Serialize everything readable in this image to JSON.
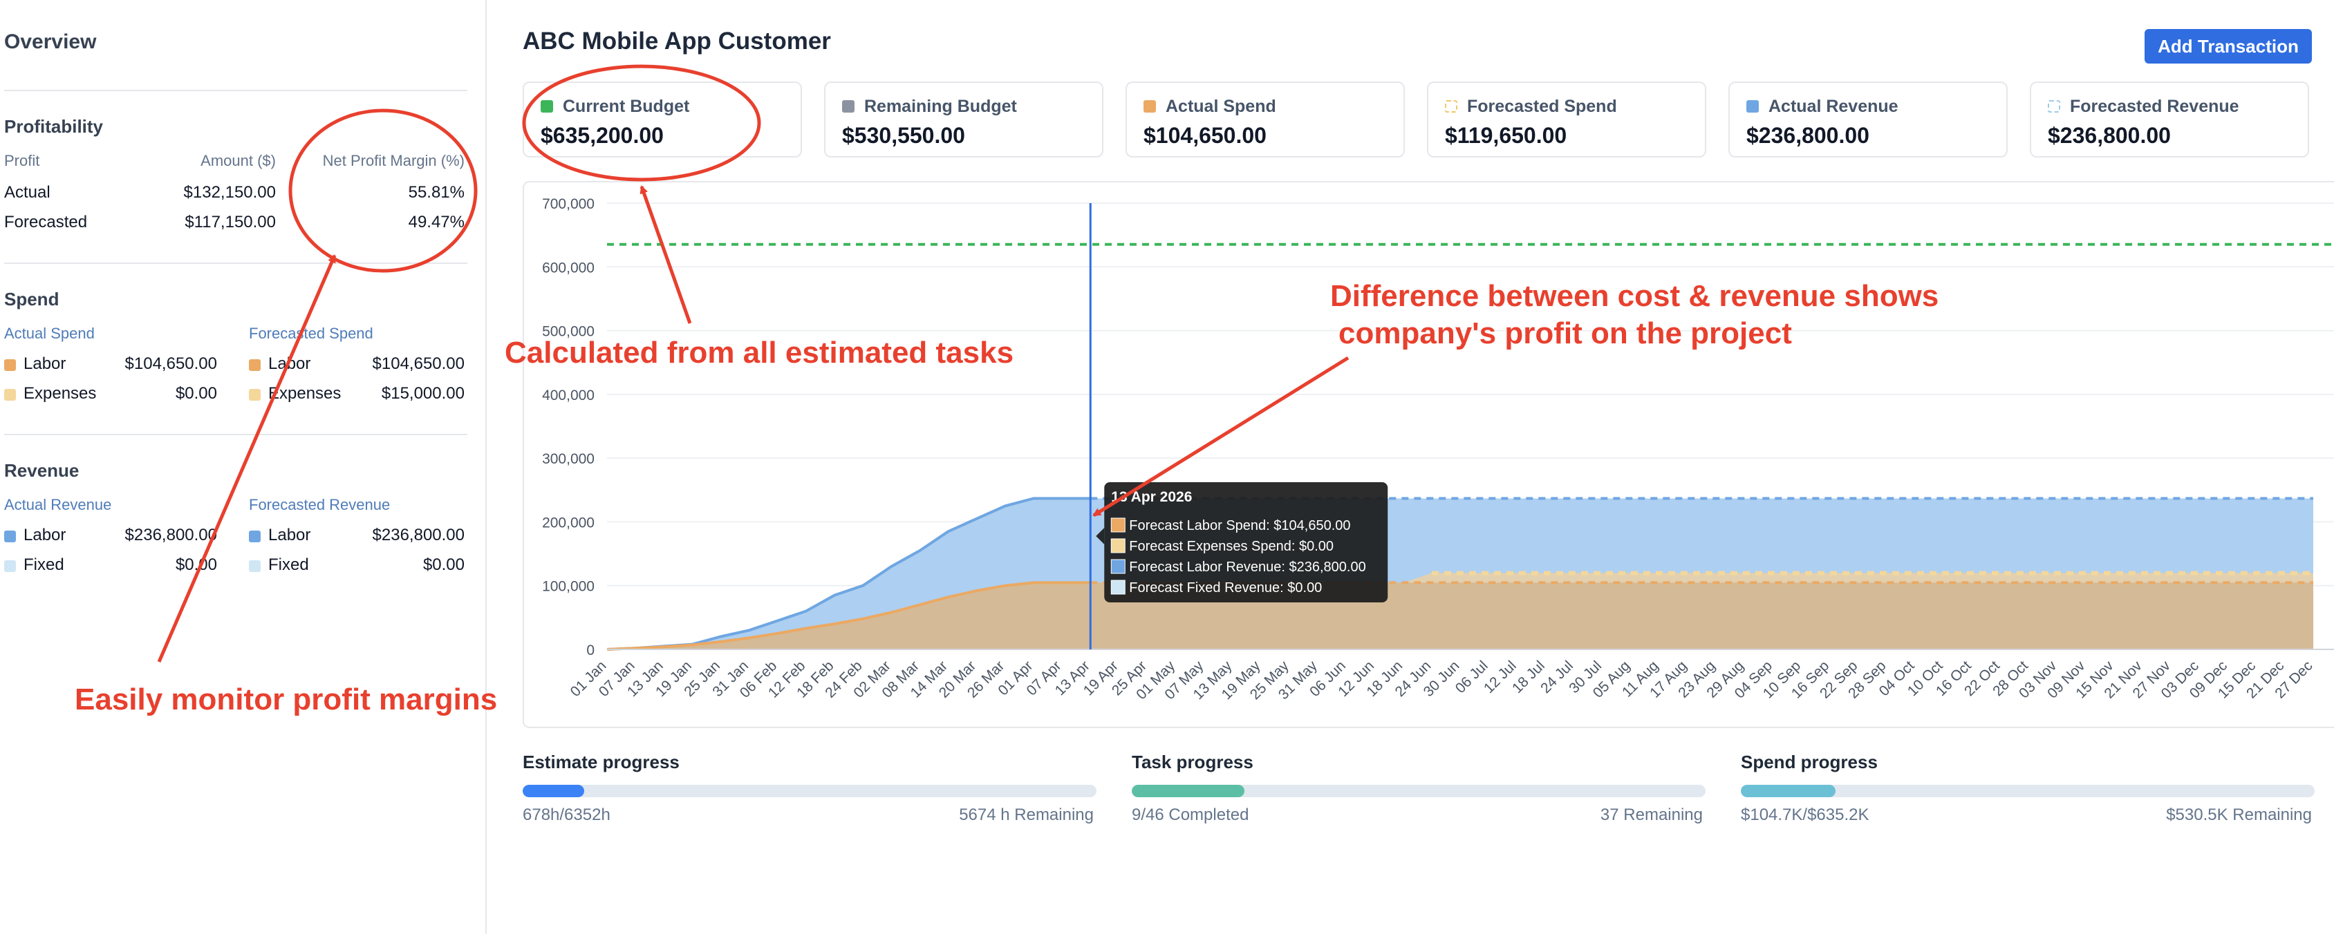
{
  "sidebar": {
    "title": "Overview",
    "profitability": {
      "heading": "Profitability",
      "col_profit": "Profit",
      "col_amount": "Amount ($)",
      "col_margin": "Net Profit Margin (%)",
      "rows": [
        {
          "label": "Actual",
          "amount": "$132,150.00",
          "margin": "55.81%"
        },
        {
          "label": "Forecasted",
          "amount": "$117,150.00",
          "margin": "49.47%"
        }
      ]
    },
    "spend": {
      "heading": "Spend",
      "actual_label": "Actual Spend",
      "forecast_label": "Forecasted Spend",
      "actual": [
        {
          "name": "Labor",
          "value": "$104,650.00"
        },
        {
          "name": "Expenses",
          "value": "$0.00"
        }
      ],
      "forecast": [
        {
          "name": "Labor",
          "value": "$104,650.00"
        },
        {
          "name": "Expenses",
          "value": "$15,000.00"
        }
      ]
    },
    "revenue": {
      "heading": "Revenue",
      "actual_label": "Actual Revenue",
      "forecast_label": "Forecasted Revenue",
      "actual": [
        {
          "name": "Labor",
          "value": "$236,800.00"
        },
        {
          "name": "Fixed",
          "value": "$0.00"
        }
      ],
      "forecast": [
        {
          "name": "Labor",
          "value": "$236,800.00"
        },
        {
          "name": "Fixed",
          "value": "$0.00"
        }
      ]
    }
  },
  "header": {
    "title": "ABC Mobile App Customer",
    "add_button": "Add Transaction"
  },
  "cards": [
    {
      "label": "Current Budget",
      "value": "$635,200.00",
      "color": "#3cb55a"
    },
    {
      "label": "Remaining Budget",
      "value": "$530,550.00",
      "color": "#8c93a0"
    },
    {
      "label": "Actual Spend",
      "value": "$104,650.00",
      "color": "#eba963"
    },
    {
      "label": "Forecasted Spend",
      "value": "$119,650.00",
      "color": "#f4d79a"
    },
    {
      "label": "Actual Revenue",
      "value": "$236,800.00",
      "color": "#6fa6e2"
    },
    {
      "label": "Forecasted Revenue",
      "value": "$236,800.00",
      "color": "#cfe6f5"
    }
  ],
  "chart_data": {
    "type": "area",
    "y_ticks": [
      "700,000",
      "600,000",
      "500,000",
      "400,000",
      "300,000",
      "200,000",
      "100,000",
      "0"
    ],
    "ylim": [
      0,
      700000
    ],
    "budget_line": 635200,
    "grid": true,
    "x_tick_labels": [
      "01 Jan",
      "07 Jan",
      "13 Jan",
      "19 Jan",
      "25 Jan",
      "31 Jan",
      "06 Feb",
      "12 Feb",
      "18 Feb",
      "24 Feb",
      "02 Mar",
      "08 Mar",
      "14 Mar",
      "20 Mar",
      "26 Mar",
      "01 Apr",
      "07 Apr",
      "13 Apr",
      "19 Apr",
      "25 Apr",
      "01 May",
      "07 May",
      "13 May",
      "19 May",
      "25 May",
      "31 May",
      "06 Jun",
      "12 Jun",
      "18 Jun",
      "24 Jun",
      "30 Jun",
      "06 Jul",
      "12 Jul",
      "18 Jul",
      "24 Jul",
      "30 Jul",
      "05 Aug",
      "11 Aug",
      "17 Aug",
      "23 Aug",
      "29 Aug",
      "04 Sep",
      "10 Sep",
      "16 Sep",
      "22 Sep",
      "28 Sep",
      "04 Oct",
      "10 Oct",
      "16 Oct",
      "22 Oct",
      "28 Oct",
      "03 Nov",
      "09 Nov",
      "15 Nov",
      "21 Nov",
      "27 Nov",
      "03 Dec",
      "09 Dec",
      "15 Dec",
      "21 Dec",
      "27 Dec"
    ],
    "series": [
      {
        "name": "Forecast Labor Revenue",
        "color": "#6fa6e2",
        "values": [
          0,
          2000,
          5000,
          8000,
          20000,
          30000,
          45000,
          60000,
          85000,
          100000,
          130000,
          155000,
          185000,
          205000,
          225000,
          236800,
          236800,
          236800,
          236800,
          236800,
          236800,
          236800,
          236800,
          236800,
          236800,
          236800,
          236800,
          236800,
          236800,
          236800,
          236800,
          236800,
          236800,
          236800,
          236800,
          236800,
          236800,
          236800,
          236800,
          236800,
          236800,
          236800,
          236800,
          236800,
          236800,
          236800,
          236800,
          236800,
          236800,
          236800,
          236800,
          236800,
          236800,
          236800,
          236800,
          236800,
          236800,
          236800,
          236800,
          236800,
          236800
        ]
      },
      {
        "name": "Forecast Labor Spend",
        "color": "#eba963",
        "values": [
          0,
          2000,
          4000,
          7000,
          12000,
          18000,
          25000,
          33000,
          40000,
          48000,
          58000,
          70000,
          82000,
          92000,
          100000,
          104650,
          104650,
          104650,
          104650,
          104650,
          104650,
          104650,
          104650,
          104650,
          104650,
          104650,
          104650,
          104650,
          104650,
          104650,
          104650,
          104650,
          104650,
          104650,
          104650,
          104650,
          104650,
          104650,
          104650,
          104650,
          104650,
          104650,
          104650,
          104650,
          104650,
          104650,
          104650,
          104650,
          104650,
          104650,
          104650,
          104650,
          104650,
          104650,
          104650,
          104650,
          104650,
          104650,
          104650,
          104650,
          104650
        ]
      },
      {
        "name": "Forecast Expenses Spend",
        "color": "#f4d79a",
        "values": [
          0,
          2000,
          4000,
          7000,
          12000,
          18000,
          25000,
          33000,
          40000,
          48000,
          58000,
          70000,
          82000,
          92000,
          100000,
          104650,
          104650,
          104650,
          104650,
          104650,
          104650,
          104650,
          104650,
          104650,
          104650,
          104650,
          104650,
          104650,
          104650,
          119650,
          119650,
          119650,
          119650,
          119650,
          119650,
          119650,
          119650,
          119650,
          119650,
          119650,
          119650,
          119650,
          119650,
          119650,
          119650,
          119650,
          119650,
          119650,
          119650,
          119650,
          119650,
          119650,
          119650,
          119650,
          119650,
          119650,
          119650,
          119650,
          119650,
          119650,
          119650
        ]
      }
    ],
    "cursor_index": 17,
    "tooltip": {
      "date": "13 Apr 2026",
      "rows": [
        {
          "text": "Forecast Labor Spend: $104,650.00",
          "color": "#eba963"
        },
        {
          "text": "Forecast Expenses Spend: $0.00",
          "color": "#f4d79a"
        },
        {
          "text": "Forecast Labor Revenue: $236,800.00",
          "color": "#6fa6e2"
        },
        {
          "text": "Forecast Fixed Revenue: $0.00",
          "color": "#cfe6f5"
        }
      ]
    }
  },
  "progress": [
    {
      "title": "Estimate progress",
      "left": "678h/6352h",
      "right": "5674 h Remaining",
      "fraction": 0.107,
      "color": "#3b82f6"
    },
    {
      "title": "Task progress",
      "left": "9/46 Completed",
      "right": "37 Remaining",
      "fraction": 0.196,
      "color": "#5cbfa5"
    },
    {
      "title": "Spend progress",
      "left": "$104.7K/$635.2K",
      "right": "$530.5K Remaining",
      "fraction": 0.165,
      "color": "#6cc0d6"
    }
  ],
  "annotations": {
    "budget_note": "Calculated from all estimated tasks",
    "diff_note_line1": "Difference between cost & revenue shows",
    "diff_note_line2": "company's profit on the project",
    "margin_note": "Easily monitor profit margins"
  }
}
